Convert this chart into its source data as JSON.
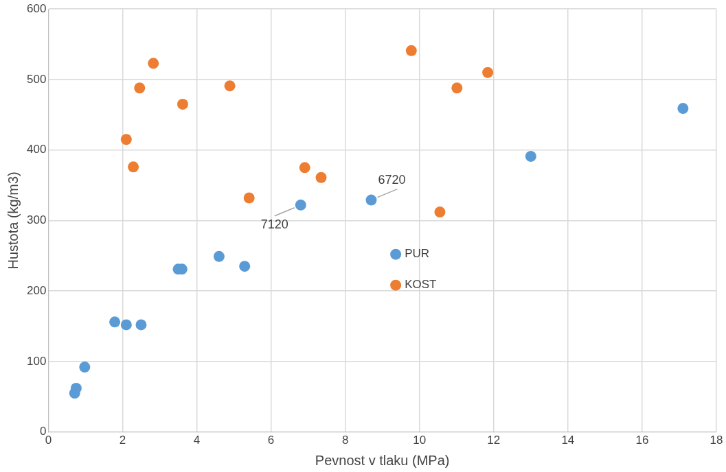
{
  "chart_data": {
    "type": "scatter",
    "xlabel": "Pevnost v tlaku (MPa)",
    "ylabel": "Hustota (kg/m3)",
    "xlim": [
      0,
      18
    ],
    "xticks": [
      0,
      2,
      4,
      6,
      8,
      10,
      12,
      14,
      16,
      18
    ],
    "ylim": [
      0,
      600
    ],
    "yticks": [
      0,
      100,
      200,
      300,
      400,
      500,
      600
    ],
    "grid": true,
    "legend": "center",
    "marker": "circle",
    "series": [
      {
        "name": "PUR",
        "color": "#5b9bd5",
        "x": [
          0.71,
          0.75,
          0.98,
          1.79,
          2.1,
          2.5,
          3.5,
          3.6,
          4.6,
          5.29,
          6.8,
          8.7,
          13.0,
          17.1
        ],
        "values": [
          55,
          62,
          92,
          156,
          152,
          152,
          231,
          231,
          249,
          235,
          322,
          329,
          391,
          459
        ]
      },
      {
        "name": "KOST",
        "color": "#ed7d31",
        "x": [
          2.1,
          2.29,
          2.46,
          2.83,
          3.62,
          4.89,
          5.41,
          6.91,
          7.35,
          9.78,
          10.55,
          11.01,
          11.84
        ],
        "values": [
          415,
          376,
          488,
          523,
          465,
          491,
          332,
          375,
          361,
          541,
          312,
          488,
          510
        ]
      }
    ],
    "annotations": [
      {
        "text": "7120",
        "x": 6.8,
        "y": 322
      },
      {
        "text": "6720",
        "x": 8.7,
        "y": 329
      }
    ]
  }
}
